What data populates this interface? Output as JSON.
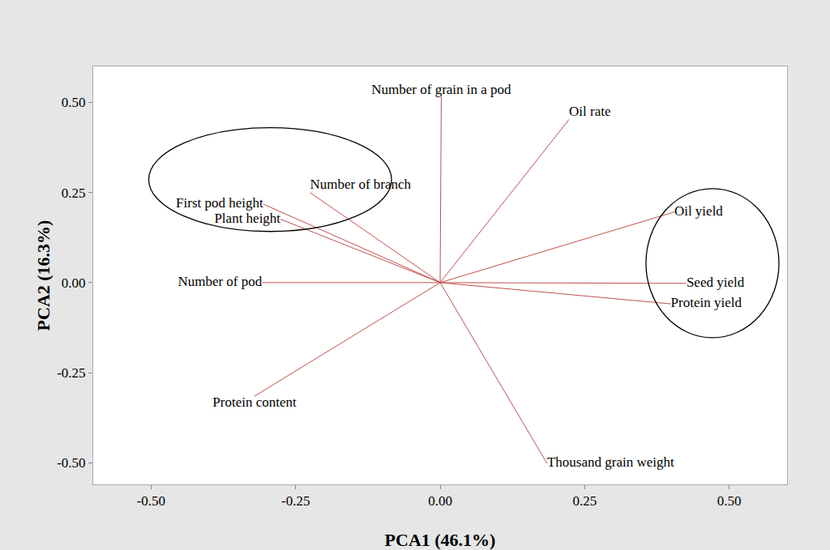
{
  "chart_data": {
    "type": "biplot",
    "x_label": "PCA1 (46.1%)",
    "y_label": "PCA2 (16.3%)",
    "xlim": [
      -0.6,
      0.6
    ],
    "ylim": [
      -0.56,
      0.6
    ],
    "xticks": [
      {
        "value": -0.5,
        "label": "-0.50"
      },
      {
        "value": -0.25,
        "label": "-0.25"
      },
      {
        "value": 0,
        "label": "0.00"
      },
      {
        "value": 0.25,
        "label": "0.25"
      },
      {
        "value": 0.5,
        "label": "0.50"
      }
    ],
    "yticks": [
      {
        "value": -0.5,
        "label": "-0.50"
      },
      {
        "value": -0.25,
        "label": "-0.25"
      },
      {
        "value": 0,
        "label": "0.00"
      },
      {
        "value": 0.25,
        "label": "0.25"
      },
      {
        "value": 0.5,
        "label": "0.50"
      }
    ],
    "grid": false,
    "color": "#c0504d",
    "vectors": [
      {
        "label": "Number of grain in a pod",
        "x": 0.002,
        "y": 0.515
      },
      {
        "label": "Oil rate",
        "x": 0.223,
        "y": 0.453
      },
      {
        "label": "Oil yield",
        "x": 0.405,
        "y": 0.196
      },
      {
        "label": "Seed yield",
        "x": 0.426,
        "y": -0.002
      },
      {
        "label": "Protein yield",
        "x": 0.399,
        "y": -0.059
      },
      {
        "label": "Thousand grain weight",
        "x": 0.185,
        "y": -0.502
      },
      {
        "label": "Protein content",
        "x": -0.321,
        "y": -0.315
      },
      {
        "label": "Number of pod",
        "x": -0.308,
        "y": 0.0
      },
      {
        "label": "Plant height",
        "x": -0.276,
        "y": 0.176
      },
      {
        "label": "First pod height",
        "x": -0.306,
        "y": 0.218
      },
      {
        "label": "Number of branch",
        "x": -0.225,
        "y": 0.25
      }
    ],
    "ellipses": [
      {
        "center": [
          -0.294,
          0.286
        ],
        "radii": [
          0.21,
          0.144
        ]
      },
      {
        "center": [
          0.471,
          0.054
        ],
        "radii": [
          0.115,
          0.207
        ]
      }
    ]
  }
}
